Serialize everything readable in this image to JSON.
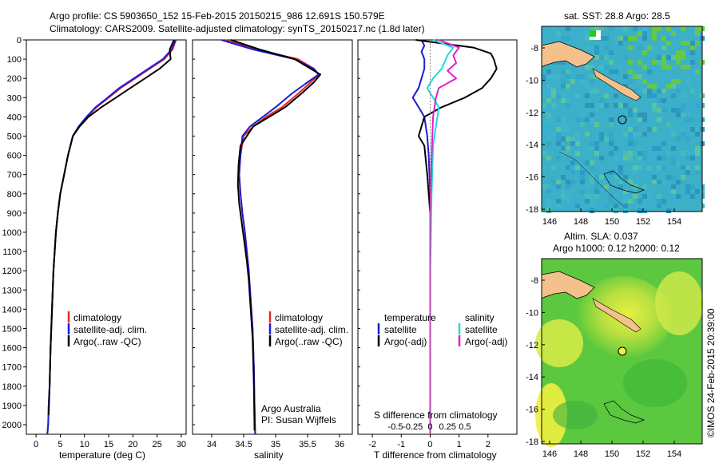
{
  "header": {
    "line1": "Argo profile: CS 5903650_152 15-Feb-2015 20150215_986 12.691S 150.579E",
    "line2": "Climatology: CARS2009. Satellite-adjusted climatology: synTS_20150217.nc (1.8d later)"
  },
  "colors": {
    "climatology": "#e8261f",
    "satellite": "#1c1cd6",
    "argo": "#000000",
    "sal_satellite": "#22d8e0",
    "sal_argo": "#e020d0",
    "land": "#f4c08c"
  },
  "depth_axis": {
    "ticks": [
      "0",
      "100",
      "200",
      "300",
      "400",
      "500",
      "600",
      "700",
      "800",
      "900",
      "1000",
      "1100",
      "1200",
      "1300",
      "1400",
      "1500",
      "1600",
      "1700",
      "1800",
      "1900",
      "2000"
    ],
    "min": 0,
    "max": 2050
  },
  "chart_data": [
    {
      "type": "line",
      "name": "temperature",
      "xlabel": "temperature (deg C)",
      "xlim": [
        -2,
        31
      ],
      "xticks": [
        "0",
        "5",
        "10",
        "15",
        "20",
        "25",
        "30"
      ],
      "xtick_values": [
        0,
        5,
        10,
        15,
        20,
        25,
        30
      ],
      "legend": [
        "climatology",
        "satellite-adj. clim.",
        "Argo(..raw -QC)"
      ],
      "series": [
        {
          "name": "climatology",
          "x": [
            28.9,
            28.2,
            26.5,
            23.5,
            20.5,
            17.5,
            15.0,
            12.5,
            10.5,
            8.8,
            7.6,
            6.6,
            5.8,
            5.0,
            4.5,
            4.1,
            3.6,
            3.3,
            3.0,
            2.8,
            2.6,
            2.5,
            2.4,
            2.3
          ],
          "y": [
            0,
            50,
            100,
            150,
            200,
            250,
            300,
            350,
            400,
            450,
            500,
            600,
            700,
            800,
            900,
            1000,
            1200,
            1400,
            1600,
            1800,
            1900,
            2000,
            2030,
            2050
          ]
        },
        {
          "name": "satellite",
          "x": [
            28.8,
            28.0,
            26.2,
            23.2,
            20.2,
            17.2,
            14.8,
            12.3,
            10.4,
            8.8,
            7.6,
            6.6,
            5.8,
            5.0,
            4.5,
            4.1,
            3.6,
            3.3,
            3.0,
            2.8,
            2.6,
            2.5,
            2.4,
            2.3
          ],
          "y": [
            0,
            50,
            100,
            150,
            200,
            250,
            300,
            350,
            400,
            450,
            500,
            600,
            700,
            800,
            900,
            1000,
            1200,
            1400,
            1600,
            1800,
            1900,
            2000,
            2030,
            2050
          ]
        },
        {
          "name": "argo",
          "x": [
            28.5,
            27.6,
            27.8,
            25.5,
            22.5,
            19.5,
            16.5,
            13.5,
            10.8,
            9.0,
            7.6,
            6.6,
            5.8,
            5.0,
            4.5,
            4.1,
            3.6,
            3.3,
            3.0,
            2.8,
            2.6
          ],
          "y": [
            0,
            50,
            100,
            150,
            200,
            250,
            300,
            350,
            400,
            450,
            500,
            600,
            700,
            800,
            900,
            1000,
            1200,
            1400,
            1600,
            1800,
            1950
          ]
        }
      ]
    },
    {
      "type": "line",
      "name": "salinity",
      "xlabel": "salinity",
      "xlim": [
        33.7,
        36.2
      ],
      "xticks": [
        "34",
        "34.5",
        "35",
        "35.5",
        "36"
      ],
      "xtick_values": [
        34,
        34.5,
        35,
        35.5,
        36
      ],
      "legend": [
        "climatology",
        "satellite-adj. clim.",
        "Argo(..raw -QC)"
      ],
      "annotation": [
        "Argo Australia",
        "PI: Susan Wijffels"
      ],
      "series": [
        {
          "name": "climatology",
          "x": [
            34.2,
            34.7,
            35.35,
            35.6,
            35.68,
            35.55,
            35.35,
            35.1,
            34.85,
            34.65,
            34.5,
            34.45,
            34.43,
            34.45,
            34.48,
            34.52,
            34.55,
            34.58,
            34.6,
            34.62,
            34.64,
            34.66,
            34.67,
            34.68
          ],
          "y": [
            0,
            50,
            100,
            150,
            180,
            220,
            280,
            350,
            400,
            450,
            500,
            600,
            700,
            800,
            900,
            1000,
            1100,
            1200,
            1300,
            1400,
            1500,
            1700,
            1900,
            2050
          ]
        },
        {
          "name": "satellite",
          "x": [
            34.15,
            34.65,
            35.3,
            35.6,
            35.67,
            35.5,
            35.25,
            35.0,
            34.8,
            34.6,
            34.48,
            34.45,
            34.43,
            34.45,
            34.48,
            34.52,
            34.55,
            34.58,
            34.6,
            34.62,
            34.64,
            34.66,
            34.67,
            34.68
          ],
          "y": [
            0,
            50,
            100,
            150,
            180,
            220,
            280,
            350,
            400,
            450,
            500,
            600,
            700,
            800,
            900,
            1000,
            1100,
            1200,
            1300,
            1400,
            1500,
            1700,
            1900,
            2050
          ]
        },
        {
          "name": "argo",
          "x": [
            34.3,
            34.75,
            35.3,
            35.55,
            35.7,
            35.6,
            35.4,
            35.15,
            34.9,
            34.65,
            34.45,
            34.42,
            34.41,
            34.43,
            34.47,
            34.51,
            34.55,
            34.58,
            34.6,
            34.62,
            34.64,
            34.66,
            34.67
          ],
          "y": [
            0,
            50,
            100,
            150,
            180,
            220,
            280,
            350,
            400,
            450,
            550,
            650,
            750,
            850,
            950,
            1050,
            1150,
            1250,
            1350,
            1450,
            1550,
            1800,
            2030
          ]
        }
      ]
    },
    {
      "type": "line",
      "name": "difference",
      "xlabel": "T difference from climatology",
      "xlabel_top": "S difference from climatology",
      "xlim": [
        -2.5,
        3
      ],
      "xticks": [
        "-2",
        "-1",
        "0",
        "1",
        "2"
      ],
      "xtick_values": [
        -2,
        -1,
        0,
        1,
        2
      ],
      "sticks": [
        "-0.5",
        "-0.25",
        "0",
        "0.25",
        "0.5"
      ],
      "stick_values": [
        -1.2,
        -0.6,
        0,
        0.6,
        1.2
      ],
      "legend_left": [
        "temperature",
        "satellite",
        "Argo(-adj)"
      ],
      "legend_right": [
        "salinity",
        "satellite",
        "Argo(-adj)"
      ],
      "series": [
        {
          "name": "T satellite",
          "color": "satellite",
          "x": [
            -0.3,
            -0.2,
            -0.3,
            -0.2,
            -0.2,
            -0.3,
            -0.4,
            -0.6,
            -0.4,
            -0.2,
            -0.1,
            -0.05,
            0,
            0,
            0,
            0
          ],
          "y": [
            0,
            30,
            60,
            100,
            150,
            200,
            250,
            300,
            350,
            400,
            500,
            600,
            800,
            1000,
            1500,
            2050
          ]
        },
        {
          "name": "T argo",
          "color": "argo",
          "x": [
            -0.5,
            1.5,
            2.1,
            2.2,
            2.3,
            2.1,
            1.8,
            1.2,
            0.4,
            -0.2,
            -0.4,
            -0.2,
            -0.1,
            0,
            0,
            0,
            0
          ],
          "y": [
            0,
            40,
            70,
            100,
            150,
            200,
            250,
            300,
            350,
            400,
            500,
            550,
            700,
            900,
            1100,
            1500,
            2050
          ]
        },
        {
          "name": "S satellite",
          "color": "sal_satellite",
          "x": [
            0.1,
            0.8,
            0.6,
            0.4,
            0.1,
            -0.1,
            0.1,
            0.3,
            0.2,
            0.1,
            0.05,
            0,
            0
          ],
          "y": [
            0,
            40,
            80,
            150,
            200,
            250,
            300,
            350,
            450,
            550,
            800,
            1200,
            2050
          ]
        },
        {
          "name": "S argo",
          "color": "sal_argo",
          "x": [
            0.3,
            1.0,
            0.8,
            0.9,
            0.6,
            0.9,
            0.3,
            0.2,
            0.1,
            0.05,
            0,
            0
          ],
          "y": [
            0,
            40,
            80,
            120,
            160,
            200,
            250,
            300,
            400,
            600,
            900,
            2050
          ]
        }
      ]
    },
    {
      "type": "heatmap",
      "name": "sst_map",
      "title": "sat. SST: 28.8 Argo: 28.5",
      "xticks": [
        "146",
        "148",
        "150",
        "152",
        "154"
      ],
      "yticks": [
        "-8",
        "-10",
        "-12",
        "-14",
        "-16",
        "-18"
      ],
      "marker": [
        150.58,
        -12.69
      ]
    },
    {
      "type": "heatmap",
      "name": "sla_map",
      "title1": "Altim. SLA: 0.037",
      "title2": "Argo h1000: 0.12 h2000: 0.12",
      "xticks": [
        "146",
        "148",
        "150",
        "152",
        "154"
      ],
      "yticks": [
        "-8",
        "-10",
        "-12",
        "-14",
        "-16",
        "-18"
      ],
      "marker": [
        150.58,
        -12.69
      ]
    }
  ],
  "watermark": "©IMOS 24-Feb-2015 20:39:00"
}
